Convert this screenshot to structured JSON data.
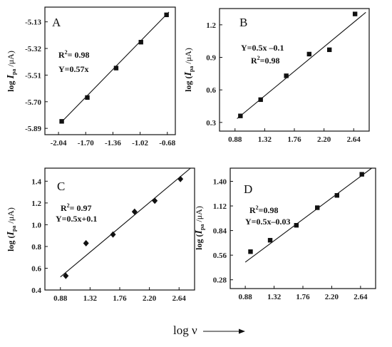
{
  "x_axis_caption": "log ν",
  "chart_data": [
    {
      "panel": "A",
      "type": "scatter",
      "markers": "square",
      "ylabel_main": "log ",
      "ylabel_I": "I",
      "ylabel_sub": "pa",
      "ylabel_unit": "/μA)",
      "xticks": [
        "-2.04",
        "-1.70",
        "-1.36",
        "-1.02",
        "-0.68"
      ],
      "yticks": [
        "-5.89",
        "-5.70",
        "-5.51",
        "-5.32",
        "-5.13"
      ],
      "xlim": [
        -2.21,
        -0.58
      ],
      "ylim": [
        -5.935,
        -5.025
      ],
      "x": [
        -2.0,
        -1.68,
        -1.32,
        -1.01,
        -0.69
      ],
      "y": [
        -5.84,
        -5.67,
        -5.46,
        -5.275,
        -5.08
      ],
      "fit_line": {
        "x0": -2.02,
        "y0": -5.855,
        "x1": -0.66,
        "y1": -5.06
      },
      "annotations": {
        "r2_base": "R",
        "r2_sup": "2",
        "r2_value": "= 0.98",
        "equation": "Y=0.57x"
      }
    },
    {
      "panel": "B",
      "type": "scatter",
      "markers": "square",
      "ylabel_main": "log (",
      "ylabel_I": "I",
      "ylabel_sub": "pa",
      "ylabel_unit": "/μA)",
      "xticks": [
        "0.88",
        "1.32",
        "1.76",
        "2.20",
        "2.64"
      ],
      "yticks": [
        "0.3",
        "0.6",
        "0.9",
        "1.2"
      ],
      "xlim": [
        0.65,
        2.87
      ],
      "ylim": [
        0.22,
        1.35
      ],
      "x": [
        0.96,
        1.26,
        1.64,
        1.98,
        2.28,
        2.66
      ],
      "y": [
        0.36,
        0.51,
        0.73,
        0.93,
        0.97,
        1.3
      ],
      "fit_line": {
        "x0": 0.91,
        "y0": 0.335,
        "x1": 2.82,
        "y1": 1.315
      },
      "annotations": {
        "r2_base": "R",
        "r2_sup": "2",
        "r2_value": "=0.98",
        "equation": "Y=0.5x –0.1"
      }
    },
    {
      "panel": "C",
      "type": "scatter",
      "markers": "diamond",
      "ylabel_main": "log (",
      "ylabel_I": "I",
      "ylabel_sub": "pa",
      "ylabel_unit": "/μA)",
      "xticks": [
        "0.88",
        "1.32",
        "1.76",
        "2.20",
        "2.64"
      ],
      "yticks": [
        "0.4",
        "0.6",
        "0.8",
        "1.0",
        "1.2",
        "1.4"
      ],
      "xlim": [
        0.65,
        2.87
      ],
      "ylim": [
        0.4,
        1.52
      ],
      "x": [
        0.96,
        1.26,
        1.66,
        1.98,
        2.28,
        2.66
      ],
      "y": [
        0.53,
        0.83,
        0.91,
        1.12,
        1.22,
        1.42
      ],
      "fit_line": {
        "x0": 0.88,
        "y0": 0.52,
        "x1": 2.81,
        "y1": 1.52
      },
      "annotations": {
        "equation": "Y=0.5x+0.1",
        "r2_base": "R",
        "r2_sup": "2",
        "r2_value": "= 0.97"
      }
    },
    {
      "panel": "D",
      "type": "scatter",
      "markers": "square",
      "ylabel_main": "log (",
      "ylabel_I": "I",
      "ylabel_sub": "pa",
      "ylabel_unit": "/μA)",
      "xticks": [
        "0.88",
        "1.32",
        "1.76",
        "2.20",
        "2.64"
      ],
      "yticks": [
        "0.28",
        "0.56",
        "0.84",
        "1.12",
        "1.40"
      ],
      "xlim": [
        0.65,
        2.87
      ],
      "ylim": [
        0.18,
        1.55
      ],
      "x": [
        0.96,
        1.26,
        1.66,
        1.98,
        2.28,
        2.66
      ],
      "y": [
        0.6,
        0.73,
        0.9,
        1.1,
        1.24,
        1.48
      ],
      "fit_line": {
        "x0": 0.88,
        "y0": 0.48,
        "x1": 2.81,
        "y1": 1.55
      },
      "annotations": {
        "r2_base": "R",
        "r2_sup": "2",
        "r2_value": "=0.98",
        "equation": "Y=0.5x–0.03"
      }
    }
  ]
}
